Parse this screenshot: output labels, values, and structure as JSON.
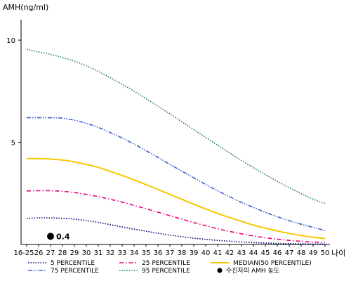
{
  "chart_data": {
    "type": "line",
    "ylabel": "AMH(ng/ml)",
    "xlabel": "나이",
    "ylim": [
      0,
      11
    ],
    "y_ticks": [
      {
        "value": 5,
        "label": "5"
      },
      {
        "value": 10,
        "label": "10"
      }
    ],
    "categories": [
      "16-25",
      "26",
      "27",
      "28",
      "29",
      "30",
      "31",
      "32",
      "33",
      "34",
      "35",
      "36",
      "37",
      "38",
      "39",
      "40",
      "41",
      "42",
      "43",
      "44",
      "45",
      "46",
      "47",
      "48",
      "49",
      "50"
    ],
    "series": [
      {
        "name": "5 PERCENTILE",
        "style": "dotted",
        "color": "#00006e",
        "values": [
          1.28,
          1.3,
          1.3,
          1.28,
          1.24,
          1.17,
          1.08,
          0.97,
          0.86,
          0.75,
          0.65,
          0.55,
          0.46,
          0.38,
          0.31,
          0.25,
          0.2,
          0.16,
          0.12,
          0.09,
          0.07,
          0.05,
          0.04,
          0.03,
          0.02,
          0.02
        ]
      },
      {
        "name": "25 PERCENTILE",
        "style": "dashdot",
        "color": "#e6007e",
        "values": [
          2.62,
          2.63,
          2.63,
          2.6,
          2.54,
          2.45,
          2.34,
          2.21,
          2.07,
          1.91,
          1.75,
          1.58,
          1.41,
          1.24,
          1.07,
          0.92,
          0.77,
          0.64,
          0.52,
          0.42,
          0.33,
          0.26,
          0.2,
          0.15,
          0.12,
          0.1
        ]
      },
      {
        "name": "MEDIAN(50 PERCENTILE)",
        "style": "solid",
        "color": "#f5c800",
        "values": [
          4.2,
          4.2,
          4.18,
          4.13,
          4.04,
          3.92,
          3.77,
          3.58,
          3.38,
          3.16,
          2.93,
          2.69,
          2.45,
          2.21,
          1.97,
          1.74,
          1.52,
          1.32,
          1.13,
          0.95,
          0.8,
          0.66,
          0.54,
          0.44,
          0.35,
          0.29
        ]
      },
      {
        "name": "75 PERCENTILE",
        "style": "dashdotdot",
        "color": "#3a5fcd",
        "values": [
          6.2,
          6.2,
          6.2,
          6.18,
          6.08,
          5.93,
          5.73,
          5.48,
          5.21,
          4.91,
          4.59,
          4.26,
          3.92,
          3.59,
          3.26,
          2.94,
          2.63,
          2.34,
          2.06,
          1.81,
          1.57,
          1.36,
          1.16,
          0.99,
          0.84,
          0.68
        ]
      },
      {
        "name": "95 PERCENTILE",
        "style": "dotted",
        "color": "#1e7a55",
        "values": [
          9.55,
          9.42,
          9.3,
          9.15,
          8.97,
          8.74,
          8.47,
          8.16,
          7.84,
          7.5,
          7.14,
          6.77,
          6.39,
          6.01,
          5.62,
          5.24,
          4.86,
          4.48,
          4.11,
          3.76,
          3.42,
          3.09,
          2.78,
          2.49,
          2.22,
          2.0
        ]
      }
    ],
    "patient": {
      "label": "수진자의 AMH 농도",
      "x": "27",
      "value": 0.4,
      "value_label": "0.4"
    }
  }
}
